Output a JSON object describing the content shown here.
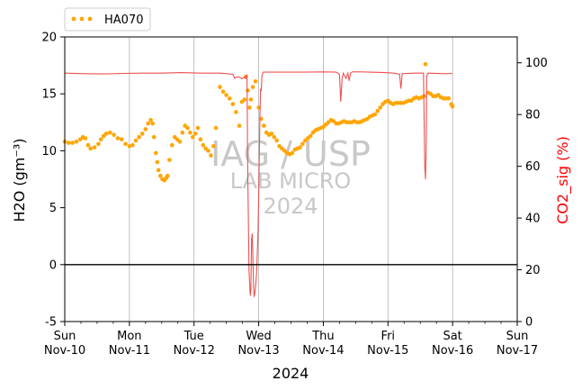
{
  "chart_data": {
    "type": "scatter",
    "xlabel": "2024",
    "ylabel_left": "H2O (gm⁻³)",
    "ylabel_right": "CO2_sig (%)",
    "x_ticks": [
      {
        "day": "Sun",
        "date": "Nov-10"
      },
      {
        "day": "Mon",
        "date": "Nov-11"
      },
      {
        "day": "Tue",
        "date": "Nov-12"
      },
      {
        "day": "Wed",
        "date": "Nov-13"
      },
      {
        "day": "Thu",
        "date": "Nov-14"
      },
      {
        "day": "Fri",
        "date": "Nov-15"
      },
      {
        "day": "Sat",
        "date": "Nov-16"
      },
      {
        "day": "Sun",
        "date": "Nov-17"
      }
    ],
    "xlim": [
      0,
      7
    ],
    "ylim_left": [
      -5,
      20
    ],
    "yticks_left": [
      -5,
      0,
      5,
      10,
      15,
      20
    ],
    "ylim_right": [
      0,
      110
    ],
    "yticks_right": [
      0,
      20,
      40,
      60,
      80,
      100
    ],
    "grid": "vertical at day ticks",
    "zero_line": 0,
    "legend": {
      "position": "top-left, above plot",
      "entries": [
        {
          "name": "HA070",
          "color": "#FFA500",
          "style": "dots"
        }
      ]
    },
    "watermark": [
      "IAG / USP",
      "LAB MICRO",
      "2024"
    ],
    "series": [
      {
        "name": "HA070",
        "axis": "left",
        "color": "#FFA500",
        "points": [
          [
            0.0,
            10.8
          ],
          [
            0.06,
            10.7
          ],
          [
            0.12,
            10.7
          ],
          [
            0.18,
            10.8
          ],
          [
            0.24,
            11.0
          ],
          [
            0.28,
            11.2
          ],
          [
            0.32,
            11.1
          ],
          [
            0.36,
            10.5
          ],
          [
            0.4,
            10.2
          ],
          [
            0.46,
            10.3
          ],
          [
            0.52,
            10.6
          ],
          [
            0.56,
            11.0
          ],
          [
            0.6,
            11.3
          ],
          [
            0.64,
            11.5
          ],
          [
            0.7,
            11.6
          ],
          [
            0.76,
            11.4
          ],
          [
            0.82,
            11.1
          ],
          [
            0.88,
            11.0
          ],
          [
            0.94,
            10.6
          ],
          [
            1.0,
            10.4
          ],
          [
            1.05,
            10.5
          ],
          [
            1.1,
            10.9
          ],
          [
            1.15,
            11.2
          ],
          [
            1.2,
            11.5
          ],
          [
            1.25,
            11.9
          ],
          [
            1.29,
            12.4
          ],
          [
            1.33,
            12.7
          ],
          [
            1.36,
            12.4
          ],
          [
            1.38,
            11.2
          ],
          [
            1.41,
            9.8
          ],
          [
            1.43,
            9.0
          ],
          [
            1.45,
            8.3
          ],
          [
            1.48,
            7.8
          ],
          [
            1.51,
            7.5
          ],
          [
            1.54,
            7.4
          ],
          [
            1.57,
            7.6
          ],
          [
            1.59,
            7.8
          ],
          [
            1.62,
            9.2
          ],
          [
            1.66,
            10.5
          ],
          [
            1.7,
            11.2
          ],
          [
            1.74,
            11.0
          ],
          [
            1.78,
            10.8
          ],
          [
            1.82,
            11.6
          ],
          [
            1.86,
            12.2
          ],
          [
            1.9,
            12.0
          ],
          [
            1.94,
            11.6
          ],
          [
            1.98,
            11.2
          ],
          [
            2.02,
            11.5
          ],
          [
            2.06,
            12.0
          ],
          [
            2.1,
            11.0
          ],
          [
            2.14,
            10.5
          ],
          [
            2.18,
            10.2
          ],
          [
            2.22,
            10.0
          ],
          [
            2.26,
            9.6
          ],
          [
            2.3,
            10.4
          ],
          [
            2.34,
            12.0
          ],
          [
            2.4,
            15.6
          ],
          [
            2.45,
            15.2
          ],
          [
            2.5,
            14.9
          ],
          [
            2.55,
            14.6
          ],
          [
            2.6,
            14.1
          ],
          [
            2.65,
            13.4
          ],
          [
            2.7,
            12.2
          ],
          [
            2.74,
            14.3
          ],
          [
            2.78,
            14.5
          ],
          [
            2.8,
            16.5
          ],
          [
            2.83,
            15.3
          ],
          [
            2.86,
            13.8
          ],
          [
            2.88,
            14.5
          ],
          [
            2.91,
            15.6
          ],
          [
            2.95,
            16.1
          ],
          [
            3.0,
            13.8
          ],
          [
            3.04,
            12.8
          ],
          [
            3.08,
            12.2
          ],
          [
            3.12,
            11.6
          ],
          [
            3.16,
            11.4
          ],
          [
            3.2,
            11.5
          ],
          [
            3.24,
            11.2
          ],
          [
            3.28,
            10.9
          ],
          [
            3.32,
            10.4
          ],
          [
            3.36,
            10.2
          ],
          [
            3.4,
            10.0
          ],
          [
            3.44,
            9.8
          ],
          [
            3.48,
            9.7
          ],
          [
            3.52,
            9.8
          ],
          [
            3.56,
            10.1
          ],
          [
            3.6,
            10.2
          ],
          [
            3.64,
            10.3
          ],
          [
            3.68,
            10.6
          ],
          [
            3.72,
            10.9
          ],
          [
            3.76,
            11.1
          ],
          [
            3.8,
            11.3
          ],
          [
            3.84,
            11.6
          ],
          [
            3.88,
            11.8
          ],
          [
            3.92,
            11.9
          ],
          [
            3.96,
            12.0
          ],
          [
            4.0,
            12.1
          ],
          [
            4.04,
            12.3
          ],
          [
            4.08,
            12.5
          ],
          [
            4.12,
            12.7
          ],
          [
            4.16,
            12.6
          ],
          [
            4.2,
            12.4
          ],
          [
            4.24,
            12.4
          ],
          [
            4.28,
            12.5
          ],
          [
            4.32,
            12.6
          ],
          [
            4.36,
            12.5
          ],
          [
            4.4,
            12.5
          ],
          [
            4.44,
            12.5
          ],
          [
            4.48,
            12.6
          ],
          [
            4.52,
            12.5
          ],
          [
            4.56,
            12.5
          ],
          [
            4.6,
            12.6
          ],
          [
            4.64,
            12.7
          ],
          [
            4.68,
            12.8
          ],
          [
            4.72,
            13.0
          ],
          [
            4.76,
            13.1
          ],
          [
            4.8,
            13.2
          ],
          [
            4.84,
            13.5
          ],
          [
            4.88,
            13.8
          ],
          [
            4.92,
            14.1
          ],
          [
            4.96,
            14.3
          ],
          [
            5.0,
            14.4
          ],
          [
            5.04,
            14.2
          ],
          [
            5.08,
            14.1
          ],
          [
            5.12,
            14.2
          ],
          [
            5.16,
            14.2
          ],
          [
            5.2,
            14.2
          ],
          [
            5.24,
            14.2
          ],
          [
            5.28,
            14.3
          ],
          [
            5.32,
            14.4
          ],
          [
            5.36,
            14.4
          ],
          [
            5.4,
            14.6
          ],
          [
            5.44,
            14.7
          ],
          [
            5.48,
            14.6
          ],
          [
            5.52,
            14.7
          ],
          [
            5.56,
            14.8
          ],
          [
            5.58,
            17.6
          ],
          [
            5.62,
            15.1
          ],
          [
            5.66,
            15.0
          ],
          [
            5.7,
            14.8
          ],
          [
            5.74,
            14.8
          ],
          [
            5.78,
            14.9
          ],
          [
            5.82,
            14.7
          ],
          [
            5.86,
            14.6
          ],
          [
            5.9,
            14.6
          ],
          [
            5.94,
            14.6
          ],
          [
            5.98,
            14.1
          ],
          [
            6.0,
            13.9
          ]
        ]
      },
      {
        "name": "CO2_sig",
        "axis": "right",
        "color": "#F05050",
        "style": "line",
        "points": [
          [
            0.0,
            96.0
          ],
          [
            0.3,
            95.8
          ],
          [
            0.6,
            95.7
          ],
          [
            0.9,
            95.9
          ],
          [
            1.2,
            96.0
          ],
          [
            1.5,
            96.0
          ],
          [
            1.8,
            96.2
          ],
          [
            2.1,
            96.0
          ],
          [
            2.4,
            96.0
          ],
          [
            2.6,
            95.6
          ],
          [
            2.63,
            94.0
          ],
          [
            2.66,
            94.5
          ],
          [
            2.7,
            94.5
          ],
          [
            2.74,
            93.8
          ],
          [
            2.78,
            94.4
          ],
          [
            2.8,
            94.0
          ],
          [
            2.82,
            95.5
          ],
          [
            2.83,
            58.0
          ],
          [
            2.84,
            40.0
          ],
          [
            2.85,
            20.0
          ],
          [
            2.86,
            15.0
          ],
          [
            2.87,
            10.0
          ],
          [
            2.88,
            12.0
          ],
          [
            2.89,
            32.0
          ],
          [
            2.9,
            34.0
          ],
          [
            2.91,
            25.0
          ],
          [
            2.92,
            15.0
          ],
          [
            2.93,
            9.5
          ],
          [
            2.94,
            11.0
          ],
          [
            2.95,
            13.0
          ],
          [
            2.96,
            16.0
          ],
          [
            2.97,
            20.0
          ],
          [
            2.98,
            27.0
          ],
          [
            2.99,
            35.0
          ],
          [
            3.0,
            50.0
          ],
          [
            3.01,
            65.0
          ],
          [
            3.02,
            80.0
          ],
          [
            3.03,
            90.0
          ],
          [
            3.04,
            89.0
          ],
          [
            3.05,
            95.0
          ],
          [
            3.07,
            96.4
          ],
          [
            3.4,
            96.4
          ],
          [
            3.7,
            96.4
          ],
          [
            4.0,
            96.5
          ],
          [
            4.2,
            96.4
          ],
          [
            4.25,
            95.5
          ],
          [
            4.27,
            85.0
          ],
          [
            4.29,
            94.0
          ],
          [
            4.31,
            96.0
          ],
          [
            4.33,
            95.0
          ],
          [
            4.35,
            94.0
          ],
          [
            4.38,
            96.0
          ],
          [
            4.4,
            93.0
          ],
          [
            4.42,
            96.0
          ],
          [
            4.45,
            96.5
          ],
          [
            4.6,
            96.5
          ],
          [
            4.9,
            96.3
          ],
          [
            5.1,
            96.0
          ],
          [
            5.18,
            95.6
          ],
          [
            5.2,
            90.0
          ],
          [
            5.22,
            95.8
          ],
          [
            5.4,
            96.0
          ],
          [
            5.55,
            96.0
          ],
          [
            5.57,
            60.0
          ],
          [
            5.58,
            55.0
          ],
          [
            5.59,
            66.0
          ],
          [
            5.6,
            95.0
          ],
          [
            5.62,
            96.0
          ],
          [
            5.9,
            95.8
          ],
          [
            6.0,
            95.9
          ]
        ]
      }
    ]
  }
}
